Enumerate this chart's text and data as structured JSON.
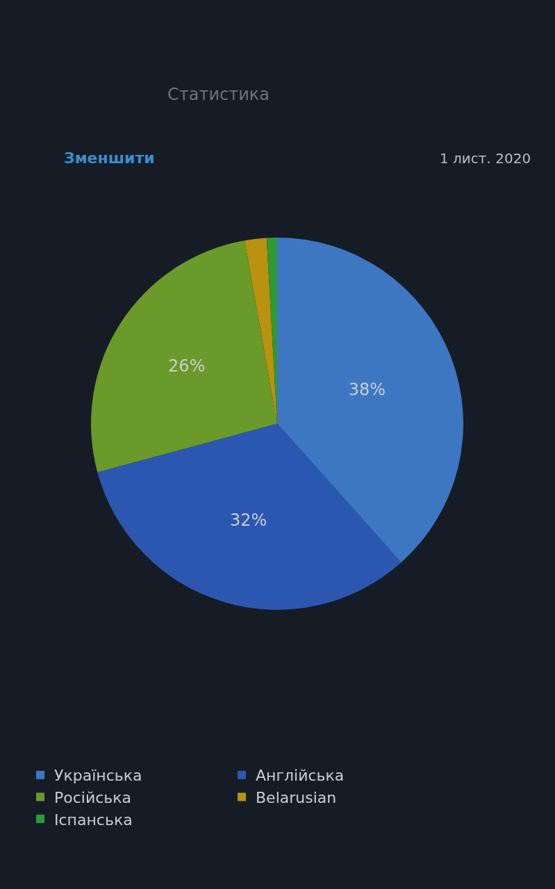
{
  "chart_data": {
    "type": "pie",
    "title": "Статистика",
    "subtitle": "1 лист. 2020",
    "annotations": [
      "Зменшити"
    ],
    "categories": [
      "Українська",
      "Англійська",
      "Російська",
      "Belarusian",
      "Іспанська"
    ],
    "values": [
      38.4,
      32.4,
      26.4,
      1.9,
      0.9
    ],
    "value_labels": [
      "38%",
      "32%",
      "26%",
      null,
      null
    ],
    "colors": [
      "#3d77c2",
      "#2c57b1",
      "#6a9a2a",
      "#b9920f",
      "#2e9a35"
    ],
    "legend": "bottom"
  }
}
